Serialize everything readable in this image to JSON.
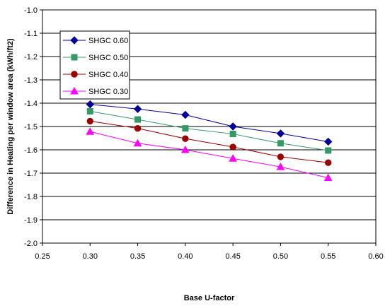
{
  "chart_data": {
    "type": "line",
    "title": "",
    "xlabel": "Base U-factor",
    "ylabel": "Difference in Heating per window area (kWh/ft2)",
    "xlim": [
      0.25,
      0.6
    ],
    "ylim": [
      -2.0,
      -1.0
    ],
    "x_ticks": [
      "0.25",
      "0.30",
      "0.35",
      "0.40",
      "0.45",
      "0.50",
      "0.55",
      "0.60"
    ],
    "y_ticks": [
      "-1.0",
      "-1.1",
      "-1.2",
      "-1.3",
      "-1.4",
      "-1.5",
      "-1.6",
      "-1.7",
      "-1.8",
      "-1.9",
      "-2.0"
    ],
    "grid": "horizontal",
    "legend_position": "top-left",
    "x": [
      0.3,
      0.35,
      0.4,
      0.45,
      0.5,
      0.55
    ],
    "series": [
      {
        "name": "SHGC 0.60",
        "color": "#000099",
        "marker": "diamond",
        "values": [
          -1.405,
          -1.425,
          -1.45,
          -1.5,
          -1.53,
          -1.565
        ]
      },
      {
        "name": "SHGC 0.50",
        "color": "#339966",
        "marker": "square",
        "values": [
          -1.435,
          -1.47,
          -1.508,
          -1.532,
          -1.572,
          -1.603
        ]
      },
      {
        "name": "SHGC 0.40",
        "color": "#990000",
        "marker": "circle",
        "values": [
          -1.477,
          -1.508,
          -1.552,
          -1.588,
          -1.63,
          -1.655
        ]
      },
      {
        "name": "SHGC 0.30",
        "color": "#ff00ff",
        "marker": "triangle",
        "values": [
          -1.522,
          -1.572,
          -1.6,
          -1.637,
          -1.673,
          -1.72
        ]
      }
    ]
  }
}
